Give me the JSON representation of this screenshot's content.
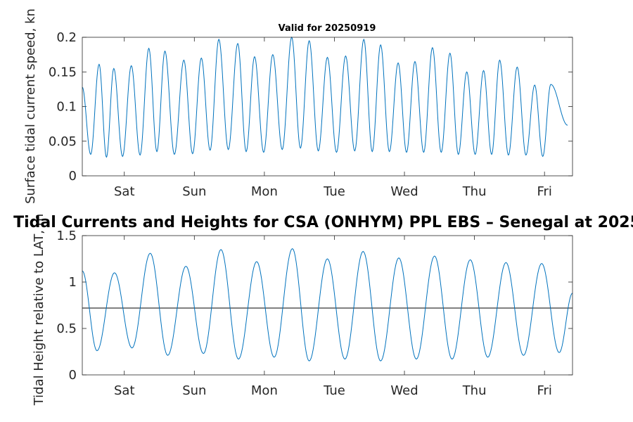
{
  "chart_data": [
    {
      "type": "line",
      "title": "Valid for 20250919",
      "ylabel": "Surface tidal current speed, kn",
      "xlabel": "",
      "ylim": [
        0,
        0.2
      ],
      "yticks": [
        "0",
        "0.05",
        "0.1",
        "0.15",
        "0.2"
      ],
      "xlim": [
        0,
        7
      ],
      "xticks": [
        {
          "x": 0.6,
          "label": "Sat"
        },
        {
          "x": 1.6,
          "label": "Sun"
        },
        {
          "x": 2.6,
          "label": "Mon"
        },
        {
          "x": 3.6,
          "label": "Tue"
        },
        {
          "x": 4.6,
          "label": "Wed"
        },
        {
          "x": 5.6,
          "label": "Thu"
        },
        {
          "x": 6.6,
          "label": "Fri"
        }
      ],
      "series": [
        {
          "name": "Current speed",
          "color": "#0072BD",
          "x": [
            0.0,
            0.24,
            0.45,
            0.7,
            0.95,
            1.18,
            1.45,
            1.7,
            1.95,
            2.22,
            2.46,
            2.72,
            2.99,
            3.24,
            3.5,
            3.76,
            4.02,
            4.26,
            4.51,
            4.75,
            5.0,
            5.25,
            5.49,
            5.73,
            5.96,
            6.21,
            6.46,
            6.69,
            6.93
          ],
          "peaks": [
            0.128,
            0.161,
            0.155,
            0.159,
            0.184,
            0.18,
            0.167,
            0.17,
            0.197,
            0.191,
            0.172,
            0.175,
            0.2,
            0.195,
            0.171,
            0.173,
            0.197,
            0.189,
            0.163,
            0.165,
            0.185,
            0.177,
            0.15,
            0.152,
            0.167,
            0.157,
            0.131,
            0.132,
            0.073
          ],
          "troughs": [
            0.031,
            0.027,
            0.028,
            0.03,
            0.035,
            0.031,
            0.032,
            0.037,
            0.038,
            0.035,
            0.034,
            0.038,
            0.04,
            0.036,
            0.034,
            0.036,
            0.035,
            0.035,
            0.034,
            0.034,
            0.034,
            0.031,
            0.031,
            0.031,
            0.03,
            0.03,
            0.028
          ]
        }
      ]
    },
    {
      "type": "line",
      "title": "Tidal Currents and Heights for CSA (ONHYM) PPL EBS  – Senegal at 2025",
      "ylabel": "Tidal Height relative to LAT, m",
      "xlabel": "",
      "ylim": [
        0,
        1.5
      ],
      "yticks": [
        "0",
        "0.5",
        "1",
        "1.5"
      ],
      "xlim": [
        0,
        7
      ],
      "xticks": [
        {
          "x": 0.6,
          "label": "Sat"
        },
        {
          "x": 1.6,
          "label": "Sun"
        },
        {
          "x": 2.6,
          "label": "Mon"
        },
        {
          "x": 3.6,
          "label": "Tue"
        },
        {
          "x": 4.6,
          "label": "Wed"
        },
        {
          "x": 5.6,
          "label": "Thu"
        },
        {
          "x": 6.6,
          "label": "Fri"
        }
      ],
      "reference_level": 0.72,
      "series": [
        {
          "name": "Tidal height",
          "color": "#0072BD",
          "x": [
            0.0,
            0.21,
            0.46,
            0.71,
            0.97,
            1.22,
            1.48,
            1.73,
            1.98,
            2.23,
            2.49,
            2.74,
            3.0,
            3.24,
            3.5,
            3.75,
            4.01,
            4.26,
            4.52,
            4.77,
            5.03,
            5.28,
            5.54,
            5.79,
            6.05,
            6.3,
            6.56,
            6.81,
            7.0
          ],
          "y": [
            1.12,
            0.26,
            1.1,
            0.29,
            1.31,
            0.21,
            1.17,
            0.23,
            1.35,
            0.17,
            1.22,
            0.19,
            1.36,
            0.15,
            1.25,
            0.17,
            1.33,
            0.15,
            1.26,
            0.17,
            1.28,
            0.17,
            1.24,
            0.19,
            1.21,
            0.21,
            1.2,
            0.24,
            0.88
          ]
        }
      ]
    }
  ]
}
